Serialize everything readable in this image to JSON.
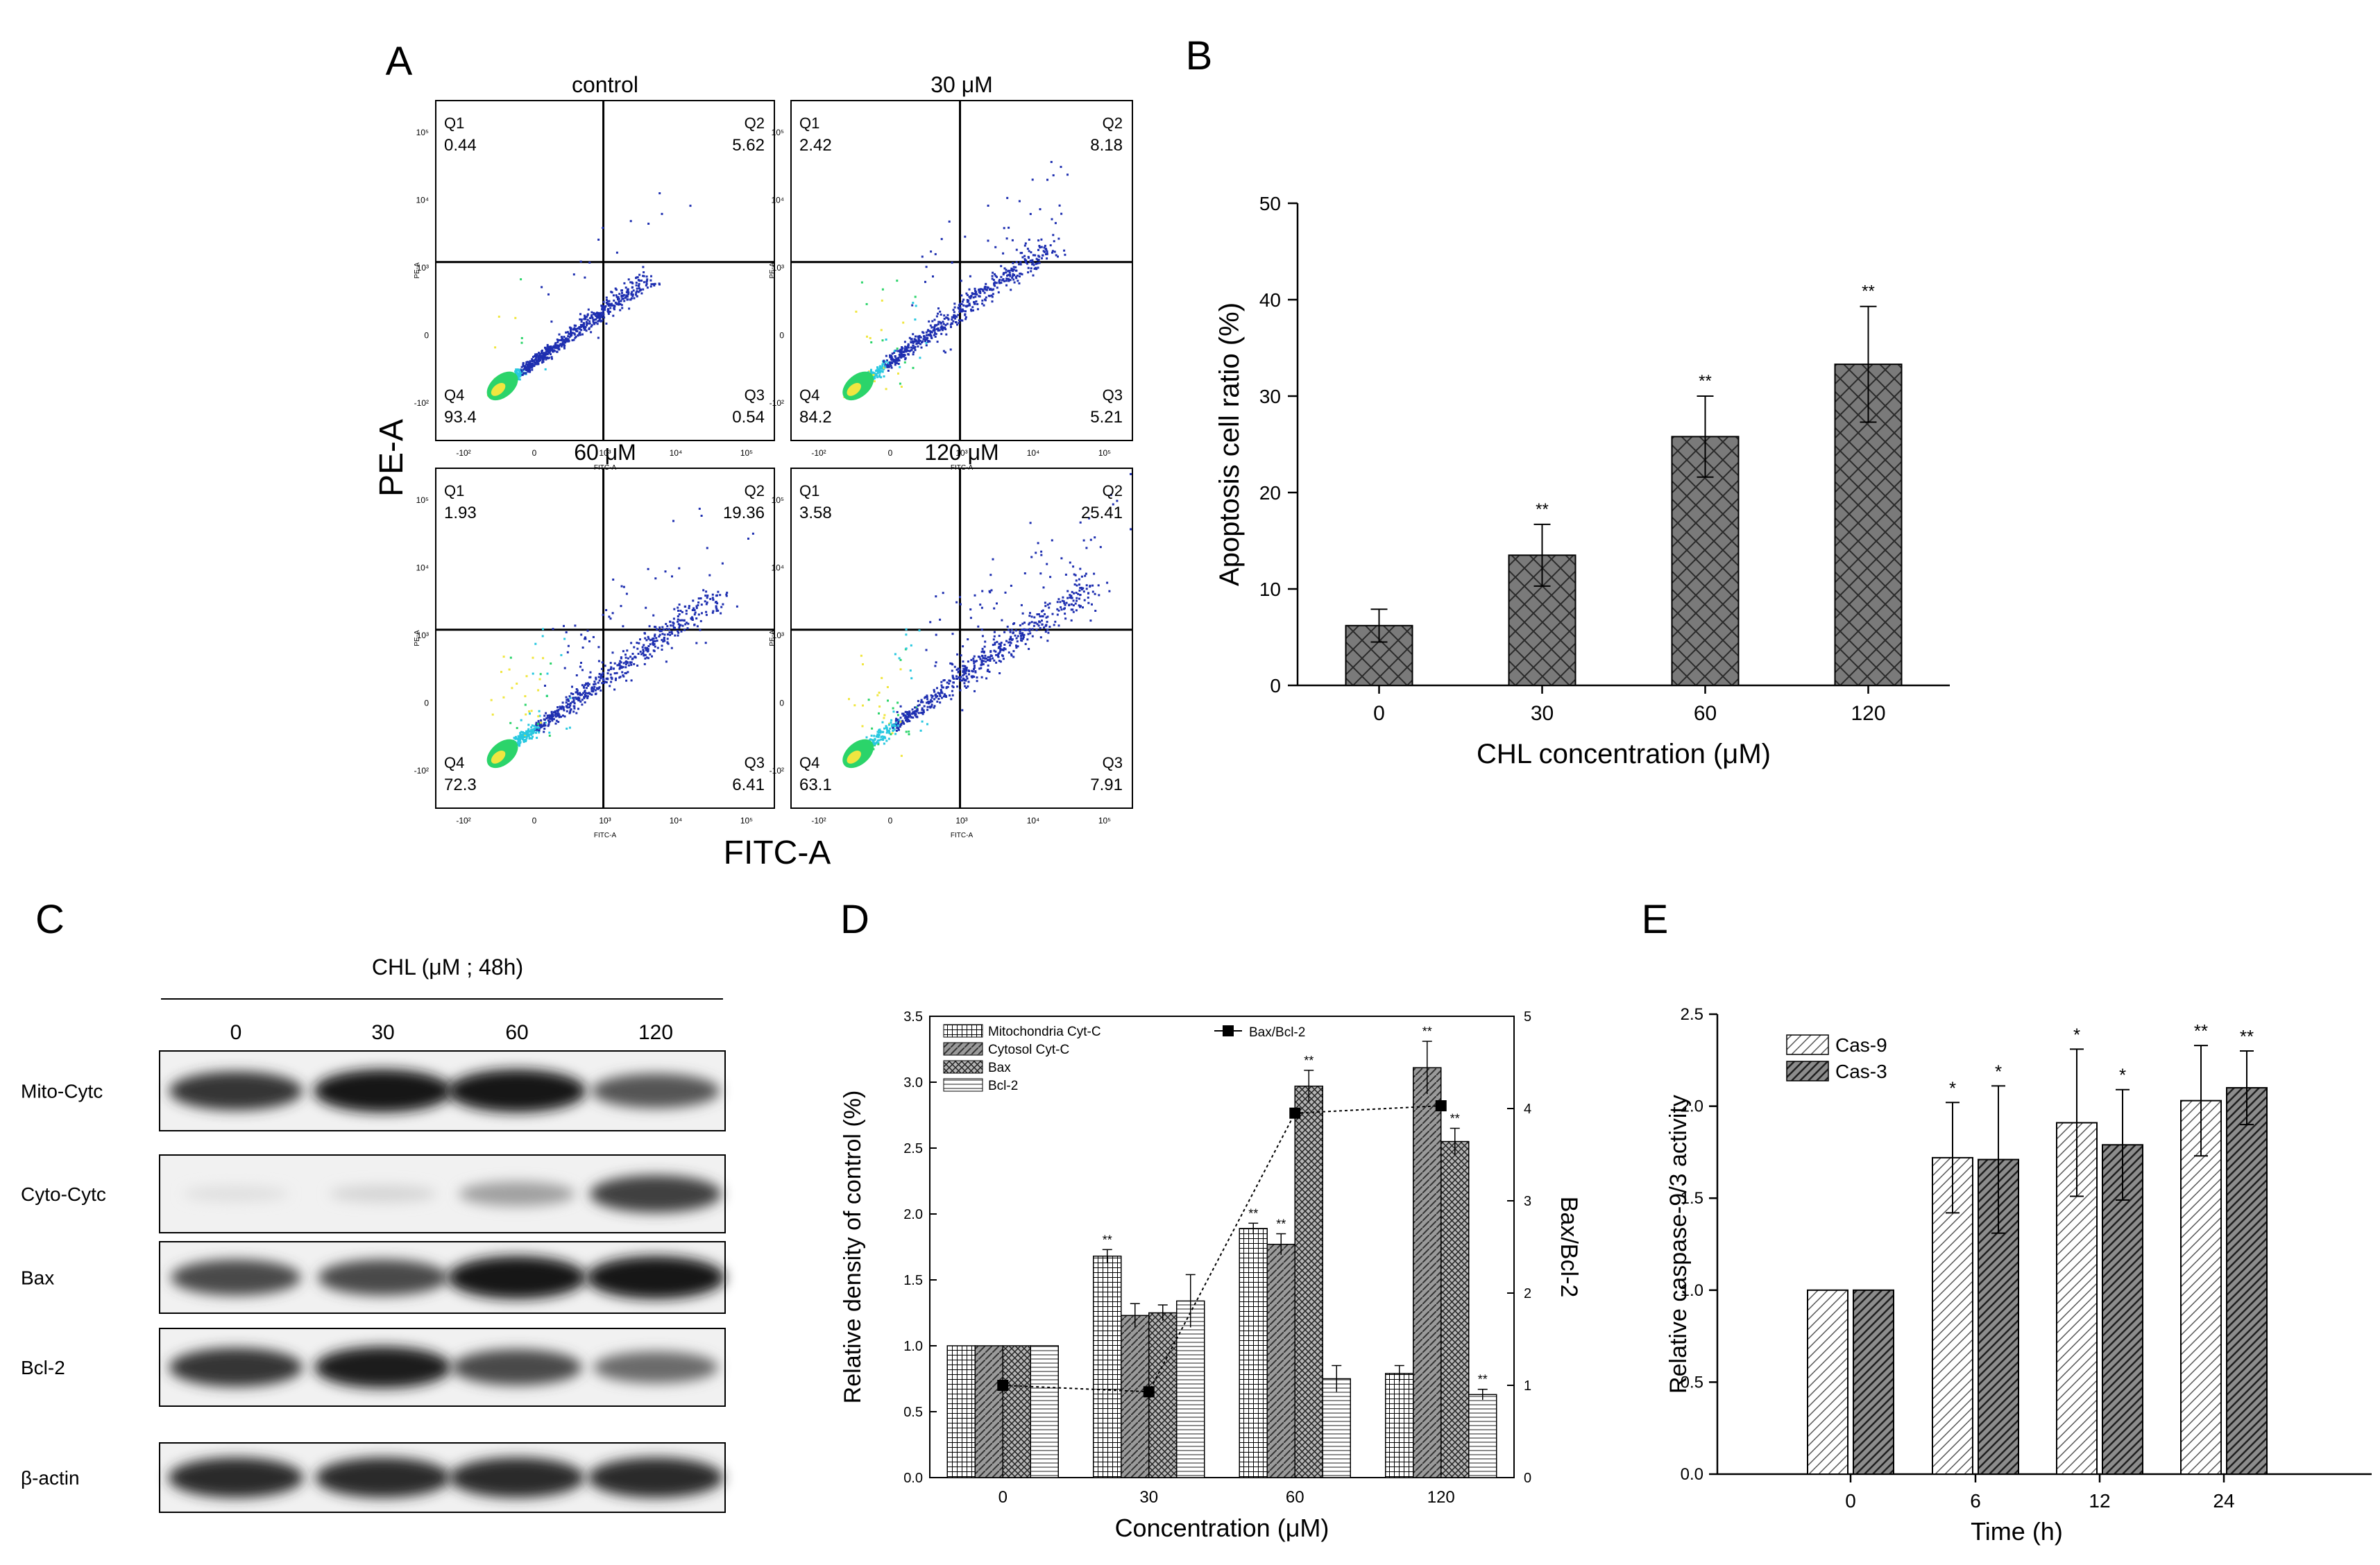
{
  "colors": {
    "ink": "#000000",
    "bar_dark": "#6f6f6f",
    "flow_blue": "#1e2fb0",
    "flow_cyan": "#28c8e0",
    "flow_green": "#2bd46a",
    "flow_yellow": "#f0e640"
  },
  "chart_data": [
    {
      "type": "scatter",
      "panel_label": "A",
      "title": "",
      "xlabel": "FITC-A",
      "ylabel": "PE-A",
      "small_axis_labels": {
        "x": "FITC-A",
        "y": "PE-A"
      },
      "quadrant_labels": [
        "Q1",
        "Q2",
        "Q3",
        "Q4"
      ],
      "tick_labels": {
        "x": [
          "-10²",
          "0",
          "10³",
          "10⁴",
          "10⁵"
        ],
        "y": [
          "10⁵",
          "10⁴",
          "10³",
          "0",
          "-10²"
        ]
      },
      "subplots": [
        {
          "title": "control",
          "values": {
            "Q1": "0.44",
            "Q2": "5.62",
            "Q3": "0.54",
            "Q4": "93.4"
          },
          "spread": 0.2
        },
        {
          "title": "30 μM",
          "values": {
            "Q1": "2.42",
            "Q2": "8.18",
            "Q3": "5.21",
            "Q4": "84.2"
          },
          "spread": 0.55
        },
        {
          "title": "60 μM",
          "values": {
            "Q1": "1.93",
            "Q2": "19.36",
            "Q3": "6.41",
            "Q4": "72.3"
          },
          "spread": 0.75
        },
        {
          "title": "120 μM",
          "values": {
            "Q1": "3.58",
            "Q2": "25.41",
            "Q3": "7.91",
            "Q4": "63.1"
          },
          "spread": 0.9
        }
      ]
    },
    {
      "type": "bar",
      "panel_label": "B",
      "title": "",
      "categories": [
        "0",
        "30",
        "60",
        "120"
      ],
      "values": [
        6.2,
        13.5,
        25.8,
        33.3
      ],
      "errors": [
        1.7,
        3.2,
        4.2,
        6.0
      ],
      "significance": [
        "",
        "**",
        "**",
        "**"
      ],
      "xlabel": "CHL concentration (μM)",
      "ylabel": "Apoptosis cell ratio (%)",
      "ylim": [
        0,
        50
      ],
      "yticks": [
        0,
        10,
        20,
        30,
        40,
        50
      ]
    },
    {
      "type": "table",
      "panel_label": "C",
      "title": "CHL (μM ; 48h)",
      "columns": [
        "0",
        "30",
        "60",
        "120"
      ],
      "rows": [
        "Mito-Cytc",
        "Cyto-Cytc",
        "Bax",
        "Bcl-2",
        "β-actin"
      ],
      "intensity": [
        [
          0.85,
          1.0,
          1.0,
          0.7
        ],
        [
          0.05,
          0.1,
          0.35,
          0.8
        ],
        [
          0.75,
          0.75,
          1.0,
          1.0
        ],
        [
          0.85,
          0.95,
          0.75,
          0.6
        ],
        [
          0.9,
          0.9,
          0.9,
          0.9
        ]
      ]
    },
    {
      "type": "bar",
      "panel_label": "D",
      "title": "",
      "categories": [
        "0",
        "30",
        "60",
        "120"
      ],
      "series": [
        {
          "name": "Mitochondria Cyt-C",
          "values": [
            1.0,
            1.68,
            1.89,
            0.79
          ],
          "errors": [
            0,
            0.05,
            0.04,
            0.06
          ],
          "sig": [
            "",
            "**",
            "**",
            ""
          ]
        },
        {
          "name": "Cytosol Cyt-C",
          "values": [
            1.0,
            1.23,
            1.77,
            3.11
          ],
          "errors": [
            0,
            0.09,
            0.08,
            0.2
          ],
          "sig": [
            "",
            "",
            "**",
            "**"
          ]
        },
        {
          "name": "Bax",
          "values": [
            1.0,
            1.25,
            2.97,
            2.55
          ],
          "errors": [
            0,
            0.06,
            0.12,
            0.1
          ],
          "sig": [
            "",
            "",
            "**",
            "**"
          ]
        },
        {
          "name": "Bcl-2",
          "values": [
            1.0,
            1.34,
            0.75,
            0.63
          ],
          "errors": [
            0,
            0.2,
            0.1,
            0.04
          ],
          "sig": [
            "",
            "",
            "",
            "**"
          ]
        }
      ],
      "line_series": {
        "name": "Bax/Bcl-2",
        "values": [
          1.0,
          0.93,
          3.95,
          4.03
        ],
        "axis": "right"
      },
      "xlabel": "Concentration (μM)",
      "ylabel": "Relative density of control (%)",
      "y2label": "Bax/Bcl-2",
      "ylim": [
        0,
        3.5
      ],
      "yticks": [
        "0.0",
        "0.5",
        "1.0",
        "1.5",
        "2.0",
        "2.5",
        "3.0",
        "3.5"
      ],
      "y2lim": [
        0,
        5
      ],
      "y2ticks": [
        "0",
        "1",
        "2",
        "3",
        "4",
        "5"
      ]
    },
    {
      "type": "bar",
      "panel_label": "E",
      "title": "",
      "categories": [
        "0",
        "6",
        "12",
        "24"
      ],
      "series": [
        {
          "name": "Cas-9",
          "values": [
            1.0,
            1.72,
            1.91,
            2.03
          ],
          "errors": [
            0,
            0.3,
            0.4,
            0.3
          ],
          "sig": [
            "",
            "*",
            "*",
            "**"
          ]
        },
        {
          "name": "Cas-3",
          "values": [
            1.0,
            1.71,
            1.79,
            2.1
          ],
          "errors": [
            0,
            0.4,
            0.3,
            0.2
          ],
          "sig": [
            "",
            "*",
            "*",
            "**"
          ]
        }
      ],
      "xlabel": "Time (h)",
      "ylabel": "Relative caspase-9/3 activity",
      "ylim": [
        0,
        2.5
      ],
      "yticks": [
        "0.0",
        "0.5",
        "1.0",
        "1.5",
        "2.0",
        "2.5"
      ]
    }
  ]
}
